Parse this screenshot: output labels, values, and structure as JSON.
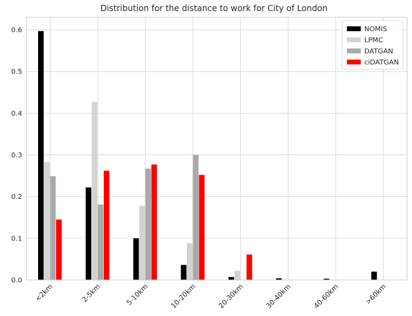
{
  "chart_data": {
    "type": "bar",
    "title": "Distribution for the distance to work for City of London",
    "xlabel": "",
    "ylabel": "",
    "categories": [
      "<2km",
      "2-5km",
      "5-10km",
      "10-20km",
      "20-30km",
      "30-40km",
      "40-60km",
      ">60km"
    ],
    "series": [
      {
        "name": "NOMIS",
        "color": "#000000",
        "values": [
          0.597,
          0.222,
          0.1,
          0.036,
          0.007,
          0.004,
          0.003,
          0.02
        ]
      },
      {
        "name": "LPMC",
        "color": "#d3d3d3",
        "values": [
          0.283,
          0.427,
          0.178,
          0.088,
          0.022,
          0.0,
          0.0,
          0.0
        ]
      },
      {
        "name": "DATGAN",
        "color": "#a9a9a9",
        "values": [
          0.249,
          0.181,
          0.267,
          0.3,
          0.0,
          0.0,
          0.0,
          0.0
        ]
      },
      {
        "name": "ciDATGAN",
        "color": "#ff0000",
        "values": [
          0.145,
          0.262,
          0.277,
          0.252,
          0.061,
          0.0,
          0.0,
          0.0
        ]
      }
    ],
    "ylim": [
      0,
      0.63
    ],
    "yticks": [
      "0.0",
      "0.1",
      "0.2",
      "0.3",
      "0.4",
      "0.5",
      "0.6"
    ],
    "grid": true,
    "legend_position": "top-right",
    "xtick_rotation": -45
  }
}
